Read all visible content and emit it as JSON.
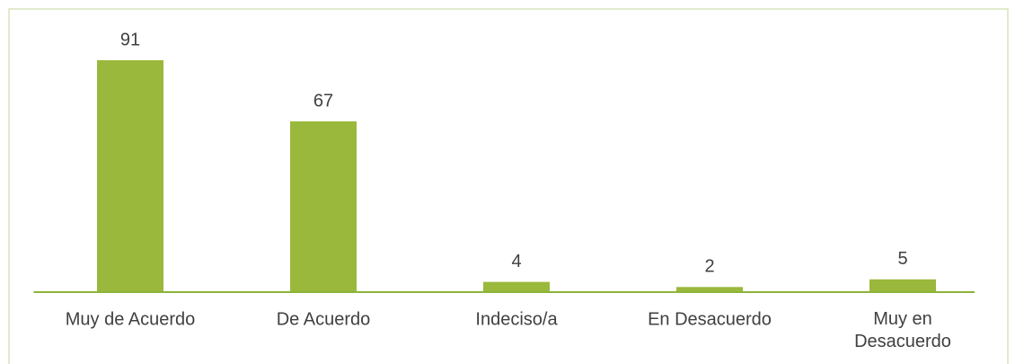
{
  "chart_data": {
    "type": "bar",
    "categories": [
      "Muy de Acuerdo",
      "De Acuerdo",
      "Indeciso/a",
      "En Desacuerdo",
      "Muy en Desacuerdo"
    ],
    "values": [
      91,
      67,
      4,
      2,
      5
    ],
    "color": "#9ab83c",
    "ylim": [
      0,
      100
    ],
    "grid": false
  }
}
